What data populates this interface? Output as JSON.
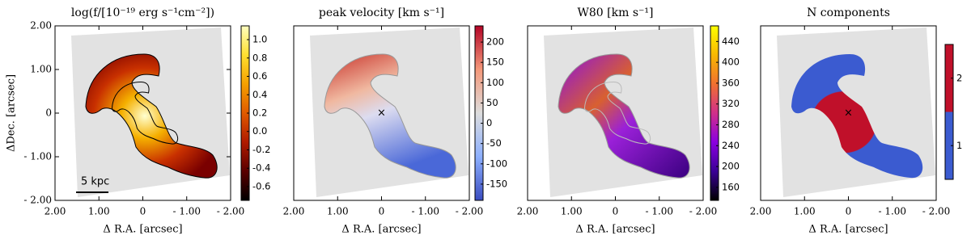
{
  "chart_data": [
    {
      "type": "heatmap",
      "title": "log(f/[10⁻¹⁹ erg s⁻¹cm⁻²])",
      "xlabel": "Δ R.A. [arcsec]",
      "ylabel": "ΔDec. [arcsec]",
      "xlim": [
        2,
        -2
      ],
      "ylim": [
        -2,
        2
      ],
      "xticks": [
        {
          "value": 2,
          "label": "2.00"
        },
        {
          "value": 1,
          "label": "1.00"
        },
        0,
        {
          "value": -1,
          "label": "- 1.00"
        },
        {
          "value": -2,
          "label": "- 2.00"
        }
      ],
      "yticks": [
        {
          "value": 2,
          "label": "2.00"
        },
        {
          "value": 1,
          "label": "1.00"
        },
        0,
        {
          "value": -1,
          "label": "- 1.00"
        },
        {
          "value": -2,
          "label": "- 2.00"
        }
      ],
      "annotation": "5 kpc",
      "clim": [
        -0.75,
        1.15
      ],
      "cticks": [
        -0.6,
        -0.4,
        -0.2,
        {
          "value": 0,
          "label": "0.0"
        },
        0.2,
        0.4,
        0.6,
        0.8,
        {
          "value": 1,
          "label": "1.0"
        }
      ],
      "cmap": [
        "#000000",
        "#5a0000",
        "#b01a00",
        "#e05a00",
        "#f5a000",
        "#ffe030",
        "#ffffc0"
      ]
    },
    {
      "type": "heatmap",
      "title": "peak velocity [km s⁻¹]",
      "xlabel": "Δ R.A. [arcsec]",
      "xlim": [
        2,
        -2
      ],
      "ylim": [
        -2,
        2
      ],
      "xticks": [
        {
          "value": 2,
          "label": "2.00"
        },
        {
          "value": 1,
          "label": "1.00"
        },
        0,
        {
          "value": -1,
          "label": "- 1.00"
        },
        {
          "value": -2,
          "label": "- 2.00"
        }
      ],
      "clim": [
        -190,
        240
      ],
      "cticks": [
        -150,
        -100,
        -50,
        0,
        50,
        100,
        150,
        200
      ],
      "cmap": [
        "#3a4cc0",
        "#8db0fe",
        "#dddddd",
        "#f4987a",
        "#b40426"
      ]
    },
    {
      "type": "heatmap",
      "title": "W80 [km s⁻¹]",
      "xlabel": "Δ R.A. [arcsec]",
      "xlim": [
        2,
        -2
      ],
      "ylim": [
        -2,
        2
      ],
      "xticks": [
        {
          "value": 2,
          "label": "2.00"
        },
        {
          "value": 1,
          "label": "1.00"
        },
        0,
        {
          "value": -1,
          "label": "- 1.00"
        },
        {
          "value": -2,
          "label": "- 2.00"
        }
      ],
      "clim": [
        135,
        470
      ],
      "cticks": [
        160,
        200,
        240,
        280,
        320,
        360,
        400,
        440
      ],
      "cmap": [
        "#000000",
        "#3a0096",
        "#8a00e0",
        "#d0308a",
        "#f07030",
        "#f8b800",
        "#ffff00"
      ]
    },
    {
      "type": "heatmap",
      "title": "N components",
      "xlabel": "Δ R.A. [arcsec]",
      "xlim": [
        2,
        -2
      ],
      "ylim": [
        -2,
        2
      ],
      "xticks": [
        {
          "value": 2,
          "label": "2.00"
        },
        {
          "value": 1,
          "label": "1.00"
        },
        0,
        {
          "value": -1,
          "label": "- 1.00"
        },
        {
          "value": -2,
          "label": "- 2.00"
        }
      ],
      "clim": [
        0.5,
        2.5
      ],
      "cticks": [
        1,
        2
      ],
      "cmap": [
        "#3b5bd0",
        "#c0102a"
      ]
    }
  ]
}
